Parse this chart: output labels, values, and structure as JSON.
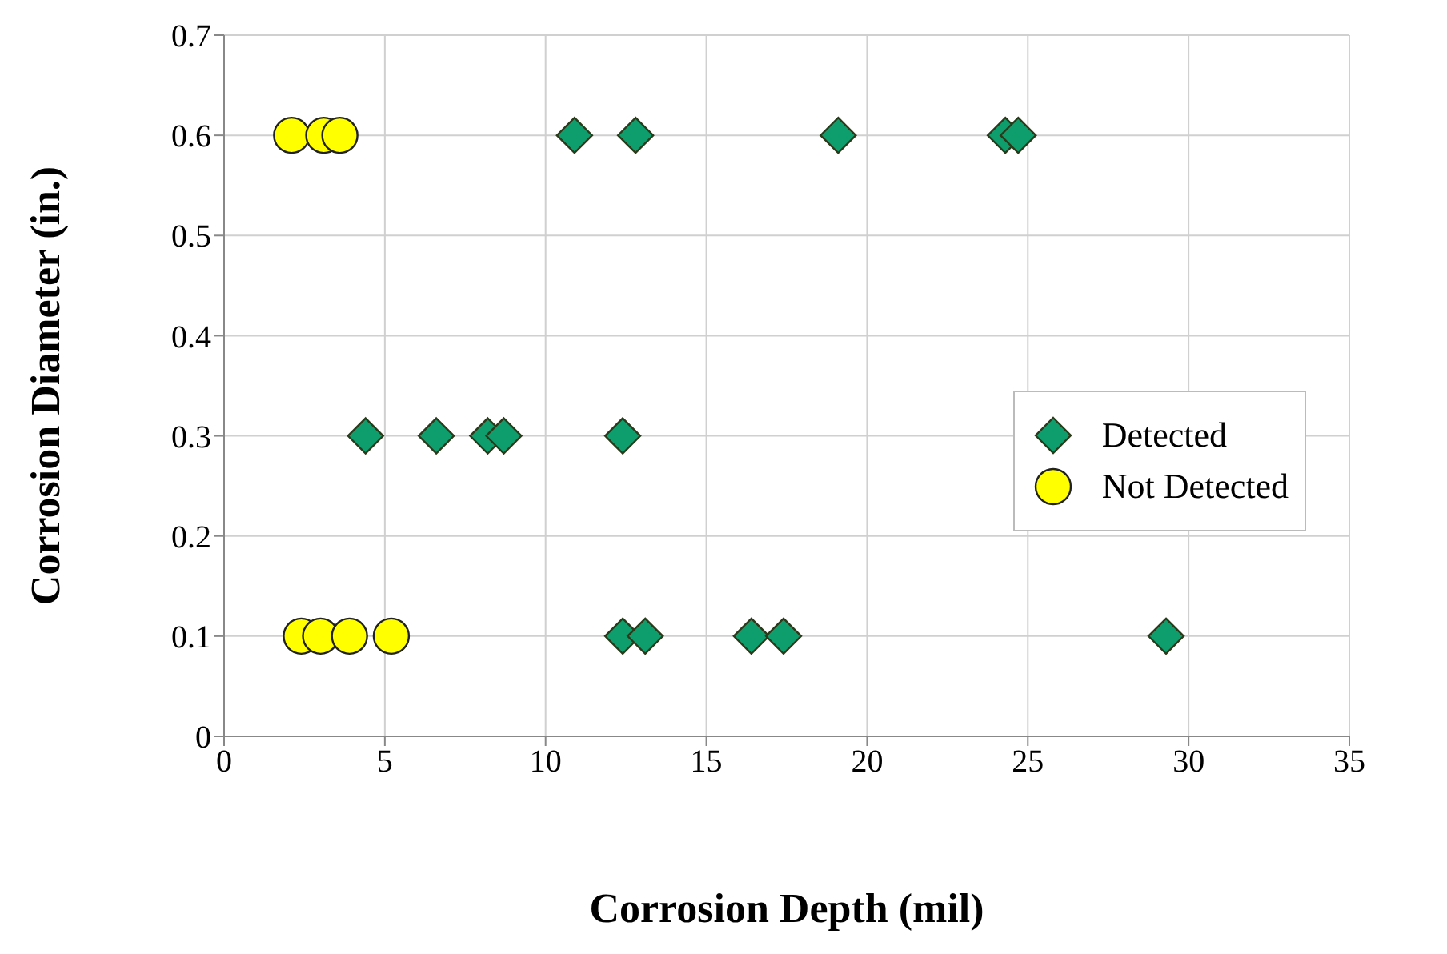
{
  "chart_data": {
    "type": "scatter",
    "xlabel": "Corrosion Depth (mil)",
    "ylabel": "Corrosion Diameter (in.)",
    "xlim": [
      0,
      35
    ],
    "xticks": [
      0,
      5,
      10,
      15,
      20,
      25,
      30,
      35
    ],
    "ylim": [
      0,
      0.7
    ],
    "yticks": [
      0,
      0.1,
      0.2,
      0.3,
      0.4,
      0.5,
      0.6,
      0.7
    ],
    "grid": true,
    "legend": "right",
    "series": [
      {
        "name": "Detected",
        "color": "#0e9e6e",
        "marker": "diamond",
        "x": [
          10.9,
          12.8,
          19.1,
          24.3,
          24.7,
          4.4,
          6.6,
          8.2,
          8.7,
          12.4,
          12.4,
          13.1,
          16.4,
          17.4,
          29.3
        ],
        "values": [
          0.6,
          0.6,
          0.6,
          0.6,
          0.6,
          0.3,
          0.3,
          0.3,
          0.3,
          0.3,
          0.1,
          0.1,
          0.1,
          0.1,
          0.1
        ]
      },
      {
        "name": "Not Detected",
        "color": "#ffff00",
        "marker": "circle",
        "x": [
          2.1,
          2.9,
          3.1,
          3.6,
          2.4,
          3.0,
          3.6,
          3.9,
          5.2
        ],
        "values": [
          0.6,
          null,
          0.6,
          0.6,
          0.1,
          0.1,
          null,
          0.1,
          0.1
        ]
      }
    ]
  }
}
